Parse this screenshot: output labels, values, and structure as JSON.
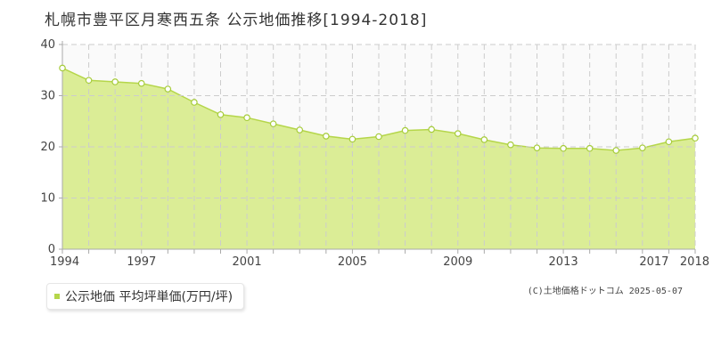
{
  "title": "札幌市豊平区月寒西五条 公示地価推移[1994-2018]",
  "legend_label": "公示地価 平均坪単価(万円/坪)",
  "copyright": "(C)土地価格ドットコム 2025-05-07",
  "colors": {
    "area_fill": "#dbed96",
    "line": "#b5d64a",
    "marker_fill": "#ffffff",
    "marker_stroke": "#a6cc3a",
    "legend_swatch": "#b5d64a",
    "plot_bg": "#fafafa",
    "grid": "#cccccc",
    "axis": "#aaaaaa"
  },
  "chart_data": {
    "type": "area",
    "x": [
      1994,
      1995,
      1996,
      1997,
      1998,
      1999,
      2000,
      2001,
      2002,
      2003,
      2004,
      2005,
      2006,
      2007,
      2008,
      2009,
      2010,
      2011,
      2012,
      2013,
      2014,
      2015,
      2016,
      2017,
      2018
    ],
    "series": [
      {
        "name": "公示地価 平均坪単価(万円/坪)",
        "values": [
          35.4,
          33.0,
          32.7,
          32.4,
          31.3,
          28.7,
          26.3,
          25.7,
          24.5,
          23.3,
          22.1,
          21.5,
          22.0,
          23.2,
          23.4,
          22.6,
          21.4,
          20.4,
          19.8,
          19.7,
          19.7,
          19.3,
          19.8,
          21.0,
          21.7
        ]
      }
    ],
    "x_tick_labels": [
      "1994",
      "1997",
      "2001",
      "2005",
      "2009",
      "2013",
      "2017",
      "2018"
    ],
    "y_ticks": [
      0,
      10,
      20,
      30,
      40
    ],
    "xlim": [
      1994,
      2018
    ],
    "ylim": [
      0,
      40
    ],
    "grid": true
  }
}
